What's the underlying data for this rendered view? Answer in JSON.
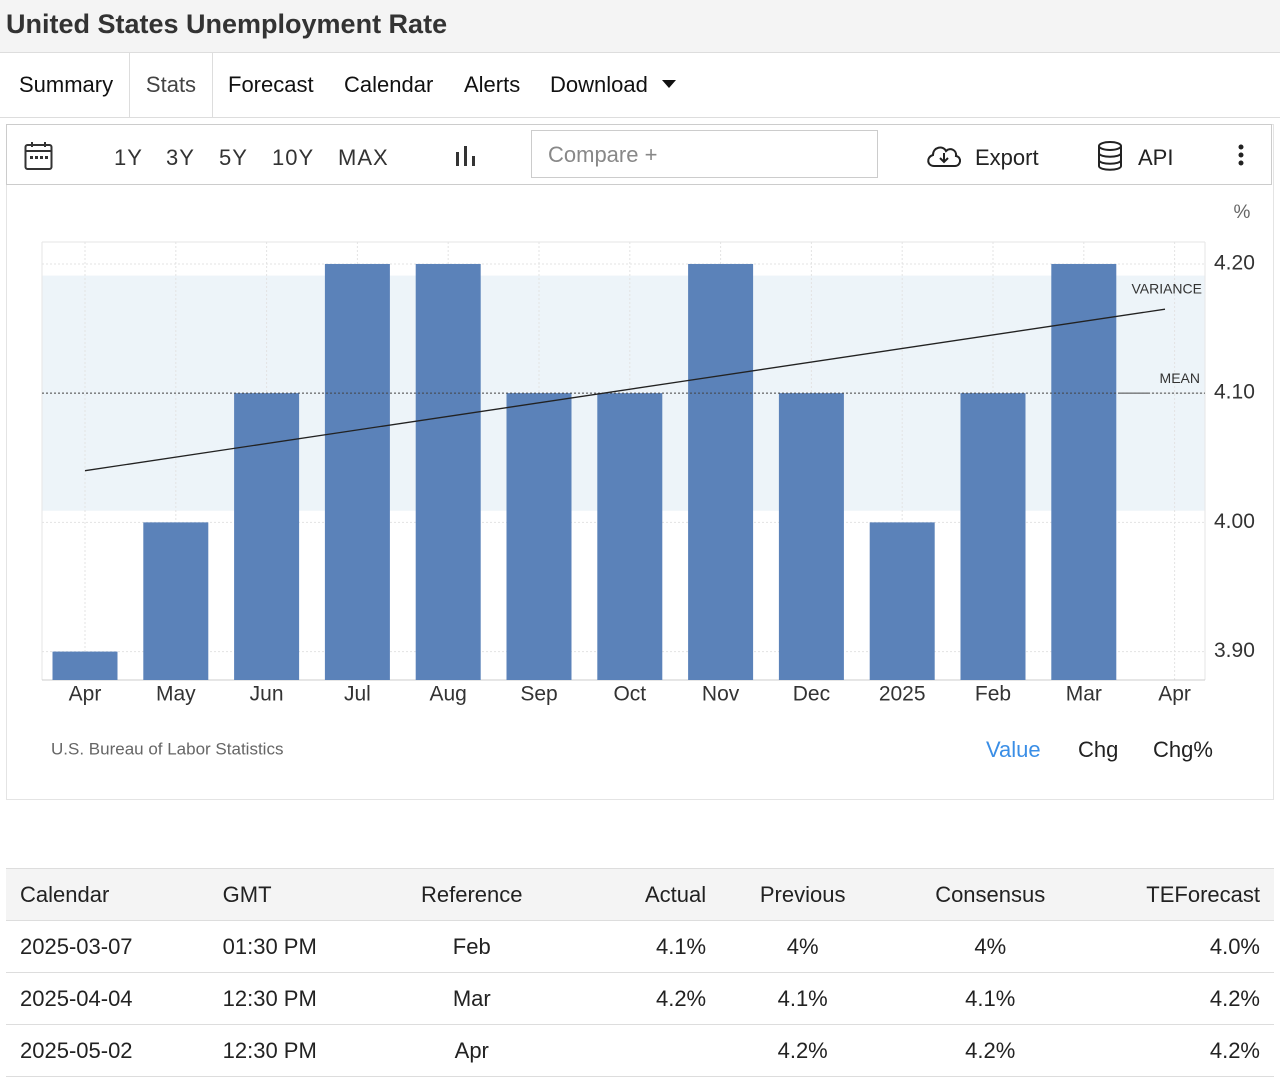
{
  "header": {
    "title": "United States Unemployment Rate"
  },
  "tabs": [
    "Summary",
    "Stats",
    "Forecast",
    "Calendar",
    "Alerts",
    "Download"
  ],
  "toolbar": {
    "ranges": [
      "1Y",
      "3Y",
      "5Y",
      "10Y",
      "MAX"
    ],
    "compare_placeholder": "Compare +",
    "export": "Export",
    "api": "API"
  },
  "chart_data": {
    "type": "bar",
    "categories": [
      "Apr",
      "May",
      "Jun",
      "Jul",
      "Aug",
      "Sep",
      "Oct",
      "Nov",
      "Dec",
      "2025",
      "Feb",
      "Mar",
      "Apr"
    ],
    "values": [
      3.9,
      4.0,
      4.1,
      4.2,
      4.2,
      4.1,
      4.1,
      4.2,
      4.1,
      4.0,
      4.1,
      4.2,
      null
    ],
    "color": "#5b82b9",
    "ylim": [
      3.878,
      4.217
    ],
    "yticks": [
      {
        "value": 3.9,
        "label": "3.90"
      },
      {
        "value": 4.0,
        "label": "4.00"
      },
      {
        "value": 4.1,
        "label": "4.10"
      },
      {
        "value": 4.2,
        "label": "4.20"
      }
    ],
    "unit": "%",
    "mean": 4.1,
    "mean_label": "MEAN",
    "variance_band": [
      4.009,
      4.191
    ],
    "variance_label": "VARIANCE",
    "trend": [
      4.04,
      4.165
    ],
    "grid": true,
    "source": "U.S. Bureau of Labor Statistics"
  },
  "view_modes": [
    "Value",
    "Chg",
    "Chg%"
  ],
  "table": {
    "headers": [
      "Calendar",
      "GMT",
      "Reference",
      "Actual",
      "Previous",
      "Consensus",
      "TEForecast"
    ],
    "rows": [
      [
        "2025-03-07",
        "01:30 PM",
        "Feb",
        "4.1%",
        "4%",
        "4%",
        "4.0%"
      ],
      [
        "2025-04-04",
        "12:30 PM",
        "Mar",
        "4.2%",
        "4.1%",
        "4.1%",
        "4.2%"
      ],
      [
        "2025-05-02",
        "12:30 PM",
        "Apr",
        null,
        "4.2%",
        "4.2%",
        "4.2%"
      ]
    ]
  }
}
